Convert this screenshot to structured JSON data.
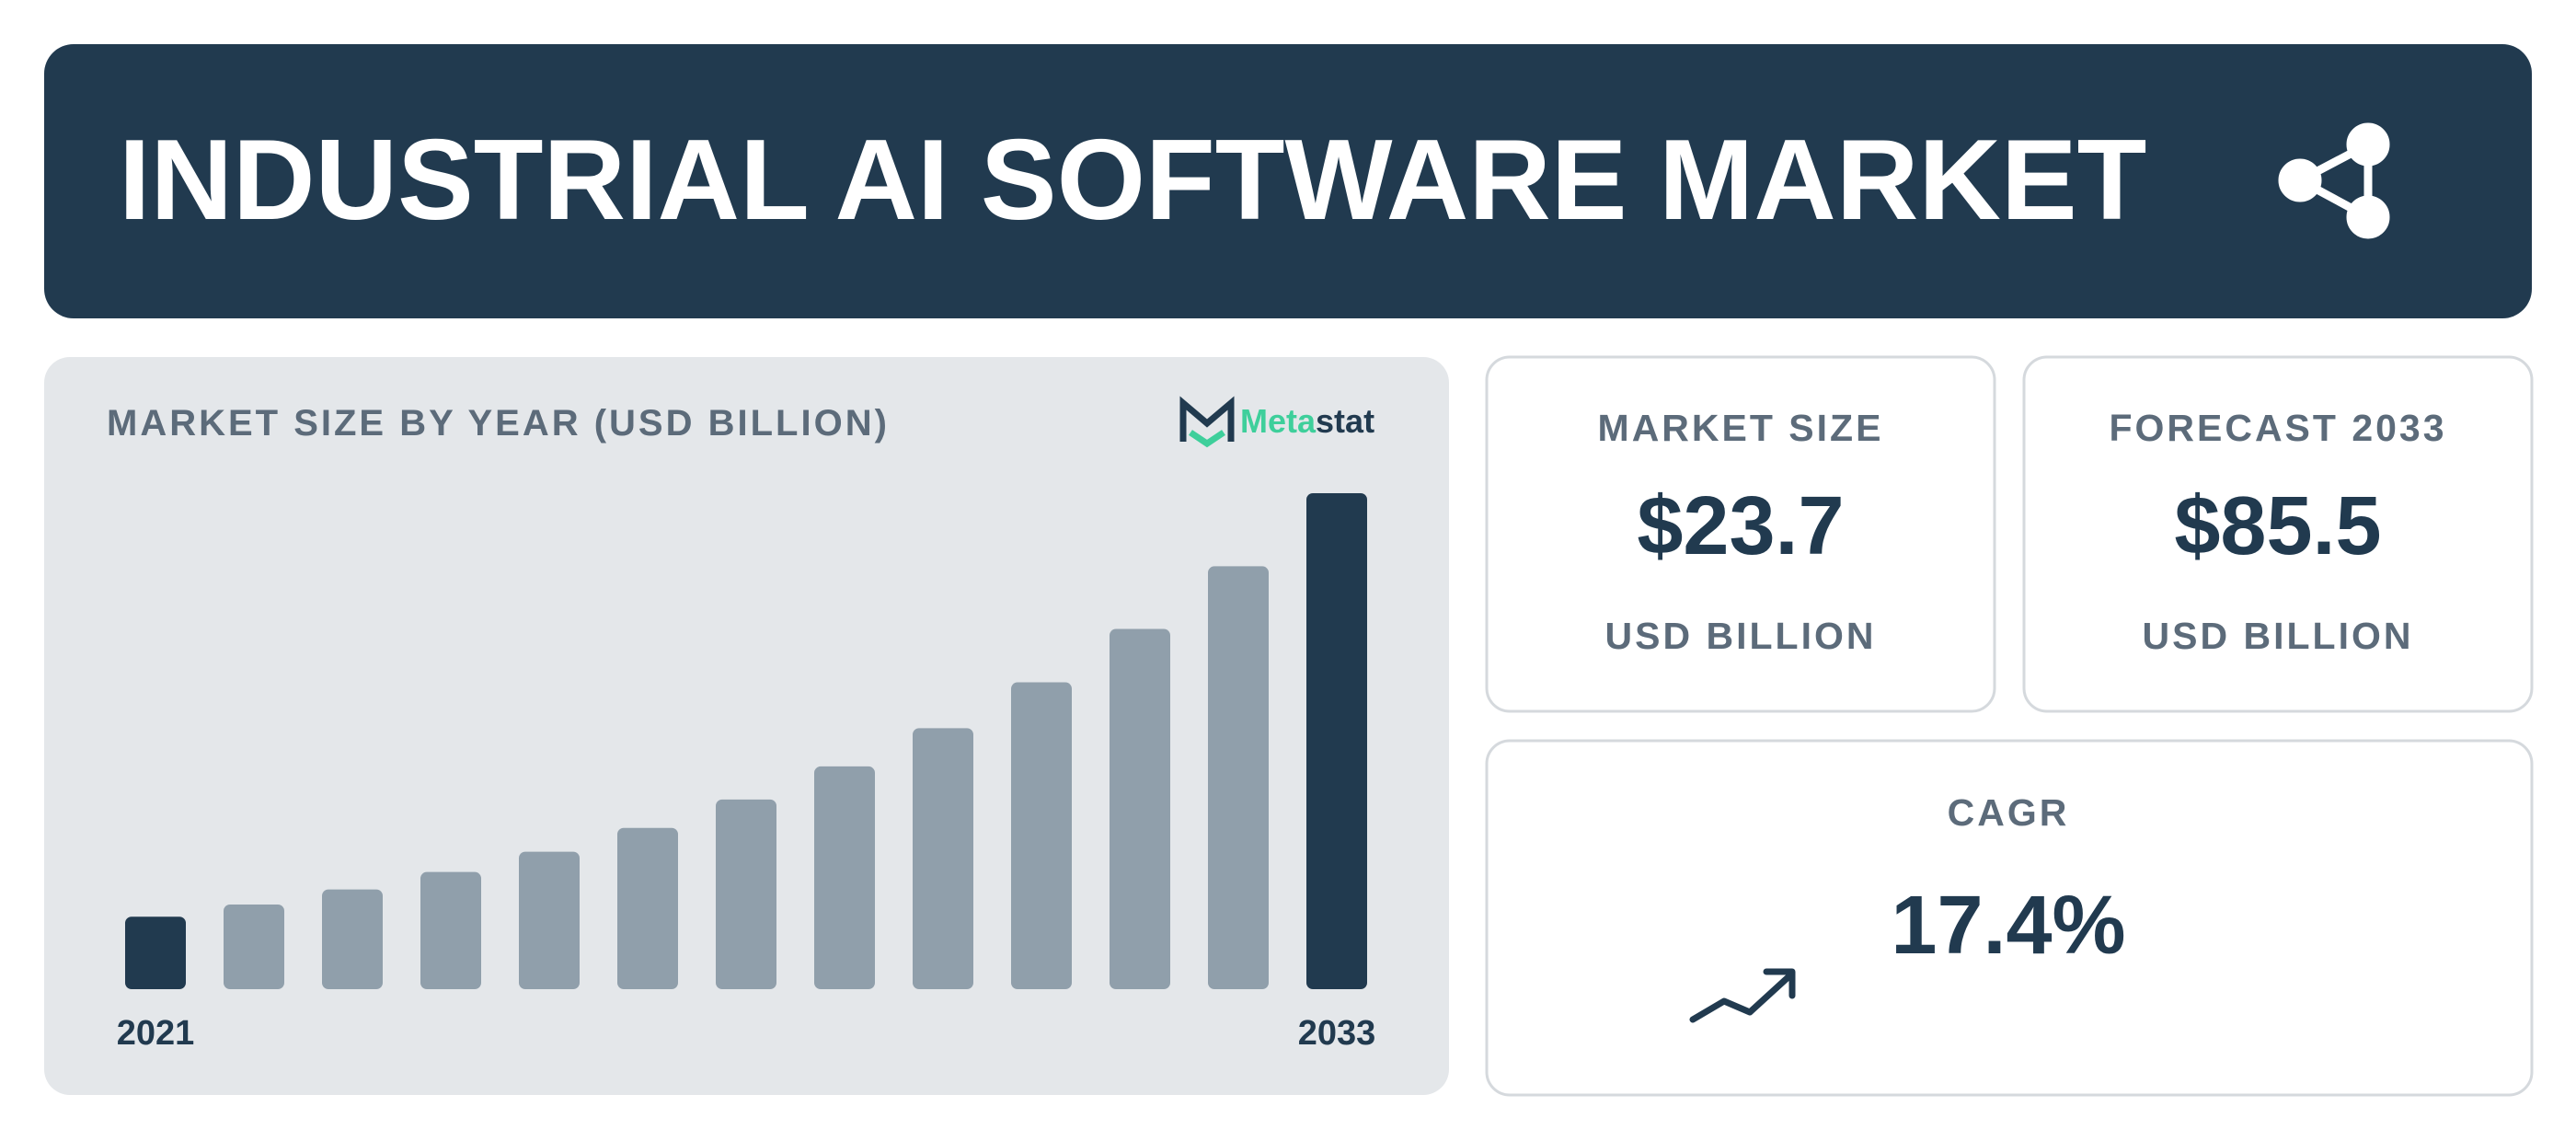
{
  "header": {
    "title": "INDUSTRIAL AI SOFTWARE MARKET"
  },
  "logo": {
    "first": "Meta",
    "second": "stat"
  },
  "chart_data": {
    "type": "bar",
    "title": "MARKET SIZE BY YEAR (USD BILLION)",
    "categories": [
      "2021",
      null,
      null,
      null,
      null,
      null,
      null,
      null,
      null,
      null,
      null,
      null,
      "2033"
    ],
    "values": [
      12.5,
      14.6,
      17.2,
      20.2,
      23.7,
      27.8,
      32.7,
      38.4,
      45.0,
      52.9,
      62.1,
      72.9,
      85.5
    ],
    "colors": [
      "#213a4f",
      "#909fab",
      "#909fab",
      "#909fab",
      "#909fab",
      "#909fab",
      "#909fab",
      "#909fab",
      "#909fab",
      "#909fab",
      "#909fab",
      "#909fab",
      "#213a4f"
    ]
  },
  "cards": [
    {
      "label": "MARKET SIZE",
      "value": "$23.7",
      "unit": "USD BILLION"
    },
    {
      "label": "FORECAST 2033",
      "value": "$85.5",
      "unit": "USD BILLION"
    },
    {
      "label": "CAGR",
      "value": "17.4%"
    }
  ]
}
